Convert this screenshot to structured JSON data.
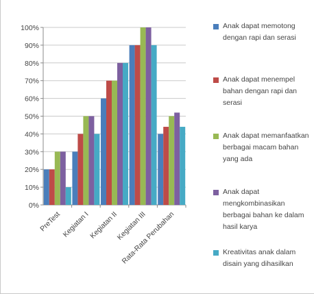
{
  "chart_data": {
    "type": "bar",
    "categories": [
      "PreTest",
      "Kegiatan I",
      "Kegiatan II",
      "Kegiatan III",
      "Rata-Rata Perubahan"
    ],
    "series": [
      {
        "name": "Anak dapat memotong dengan rapi dan serasi",
        "color": "#4a7ebb",
        "values": [
          20,
          30,
          60,
          90,
          40
        ]
      },
      {
        "name": "Anak dapat menempel bahan dengan rapi dan serasi",
        "color": "#be4b48",
        "values": [
          20,
          40,
          70,
          90,
          44
        ]
      },
      {
        "name": "Anak dapat memanfaatkan berbagai macam bahan yang ada",
        "color": "#98b954",
        "values": [
          30,
          50,
          70,
          100,
          50
        ]
      },
      {
        "name": "Anak dapat mengkombinasikan berbagai bahan ke dalam hasil karya",
        "color": "#7d60a0",
        "values": [
          30,
          50,
          80,
          100,
          52
        ]
      },
      {
        "name": "Kreativitas anak dalam disain yang dihasilkan",
        "color": "#46aac5",
        "values": [
          10,
          40,
          80,
          90,
          44
        ]
      }
    ],
    "y_ticks": [
      "0%",
      "10%",
      "20%",
      "30%",
      "40%",
      "50%",
      "60%",
      "70%",
      "80%",
      "90%",
      "100%"
    ],
    "ylim": [
      0,
      100
    ],
    "y_unit": "%",
    "grid": true,
    "legend_position": "right"
  }
}
